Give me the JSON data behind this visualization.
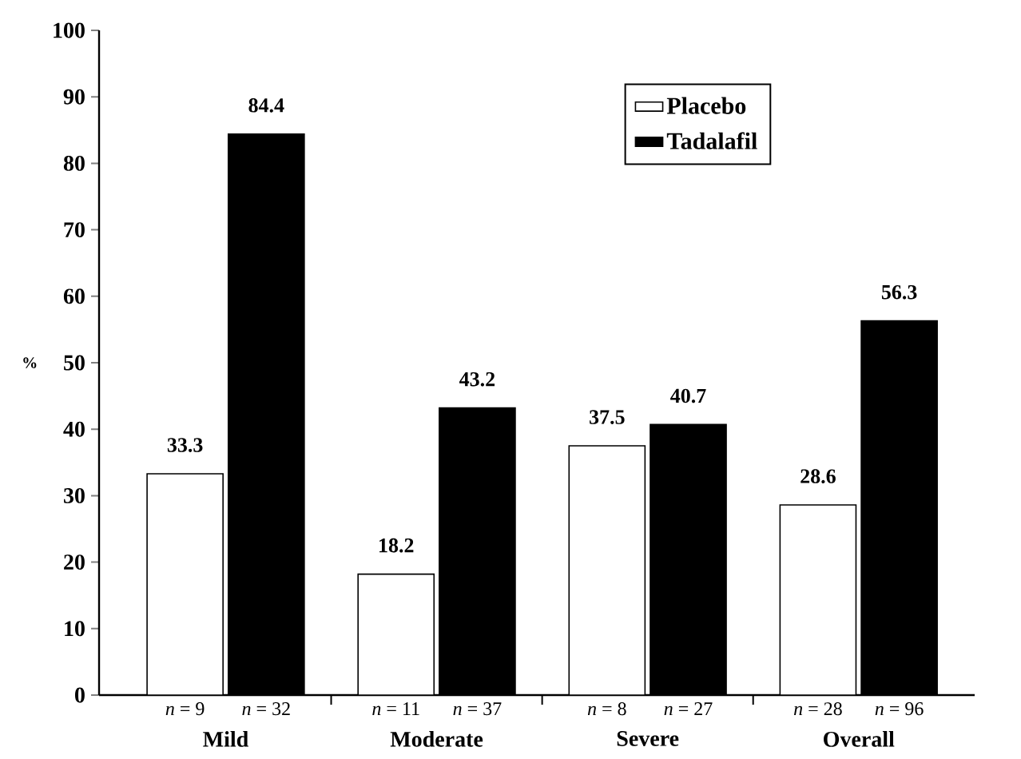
{
  "chart_data": {
    "type": "bar",
    "ylabel": "%",
    "categories": [
      "Mild",
      "Moderate",
      "Severe",
      "Overall"
    ],
    "series": [
      {
        "name": "Placebo",
        "color": "#ffffff",
        "values": [
          33.3,
          18.2,
          37.5,
          28.6
        ]
      },
      {
        "name": "Tadalafil",
        "color": "#000000",
        "values": [
          84.4,
          43.2,
          40.7,
          56.3
        ]
      }
    ],
    "ylim": [
      0,
      100
    ],
    "yticks": [
      0,
      10,
      20,
      30,
      40,
      50,
      60,
      70,
      80,
      90,
      100
    ],
    "data_labels": true,
    "legend": "top right",
    "grid": false,
    "annotations": [
      "*n* = 9",
      "*n* = 32",
      "*n* = 11",
      "*n* = 37",
      "*n* = 8",
      "*n* = 27",
      "*n* = 28",
      "*n* = 96"
    ]
  }
}
